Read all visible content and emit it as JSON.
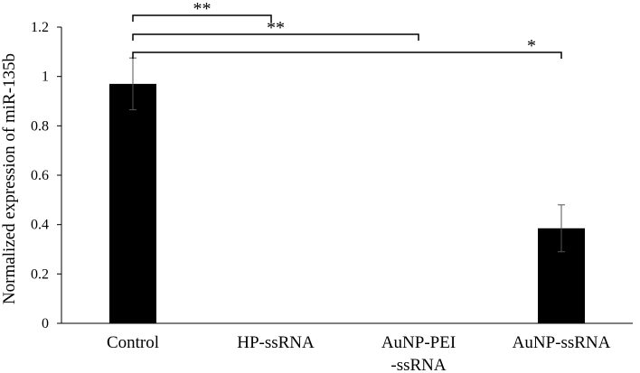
{
  "chart_data": {
    "type": "bar",
    "title": "",
    "xlabel": "",
    "ylabel": "Normalized expression of miR-135b",
    "categories": [
      [
        "Control"
      ],
      [
        "HP-ssRNA"
      ],
      [
        "AuNP-PEI",
        "-ssRNA"
      ],
      [
        "AuNP-ssRNA"
      ]
    ],
    "values": [
      0.97,
      0,
      0,
      0.385
    ],
    "error": [
      0.105,
      0,
      0,
      0.095
    ],
    "ylim": [
      0,
      1.2
    ],
    "yticks": [
      0,
      0.2,
      0.4,
      0.6,
      0.8,
      1,
      1.2
    ],
    "grid": false,
    "bar_color": "#000000",
    "significance": [
      {
        "from": 0,
        "to": 1,
        "label": "**"
      },
      {
        "from": 0,
        "to": 2,
        "label": "**"
      },
      {
        "from": 0,
        "to": 3,
        "label": "*"
      }
    ]
  }
}
